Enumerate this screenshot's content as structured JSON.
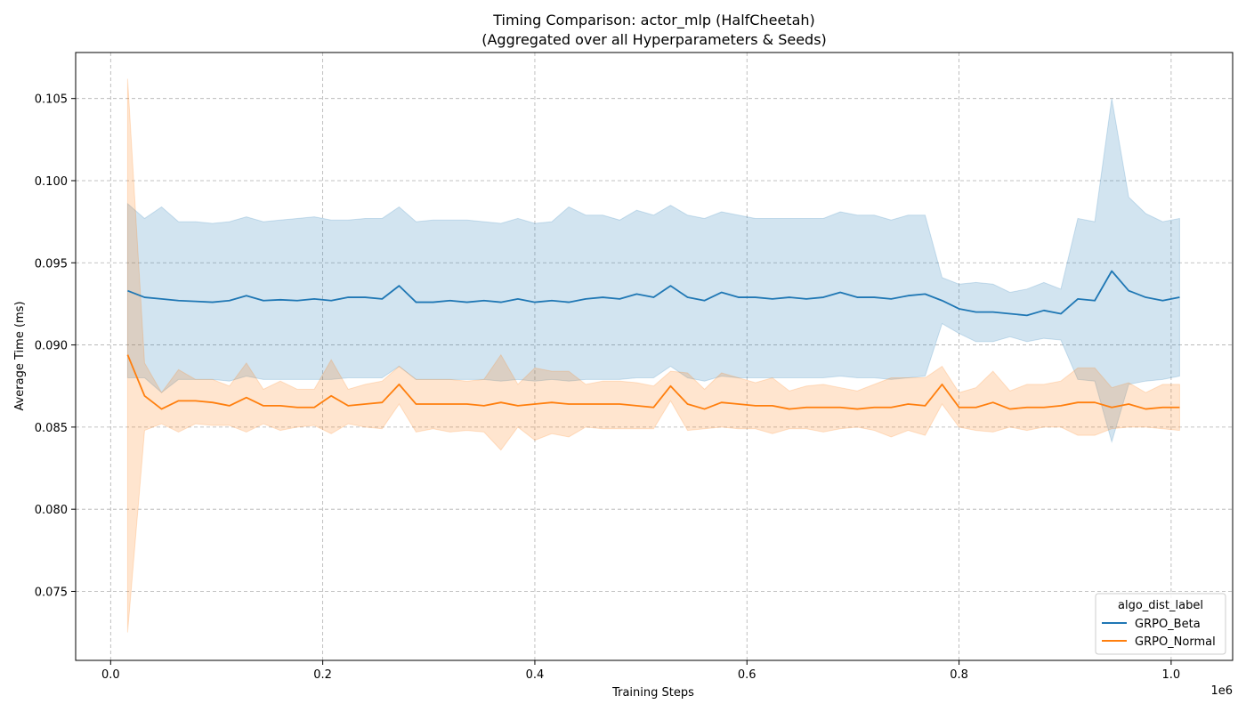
{
  "chart_data": {
    "type": "line",
    "title": "Timing Comparison: actor_mlp (HalfCheetah)",
    "subtitle": "(Aggregated over all Hyperparameters & Seeds)",
    "xlabel": "Training Steps",
    "ylabel": "Average Time (ms)",
    "x_multiplier_label": "1e6",
    "xlim": [
      -0.033,
      1.058
    ],
    "ylim": [
      0.0708,
      0.1078
    ],
    "x_ticks": [
      0.0,
      0.2,
      0.4,
      0.6,
      0.8,
      1.0
    ],
    "x_tick_labels": [
      "0.0",
      "0.2",
      "0.4",
      "0.6",
      "0.8",
      "1.0"
    ],
    "y_ticks": [
      0.075,
      0.08,
      0.085,
      0.09,
      0.095,
      0.1,
      0.105
    ],
    "y_tick_labels": [
      "0.075",
      "0.080",
      "0.085",
      "0.090",
      "0.095",
      "0.100",
      "0.105"
    ],
    "grid": true,
    "legend": {
      "title": "algo_dist_label",
      "placement": "lower-right"
    },
    "x": [
      0.016,
      0.032,
      0.048,
      0.064,
      0.08,
      0.096,
      0.112,
      0.128,
      0.144,
      0.16,
      0.176,
      0.192,
      0.208,
      0.224,
      0.24,
      0.256,
      0.272,
      0.288,
      0.304,
      0.32,
      0.336,
      0.352,
      0.368,
      0.384,
      0.4,
      0.416,
      0.432,
      0.448,
      0.464,
      0.48,
      0.496,
      0.512,
      0.528,
      0.544,
      0.56,
      0.576,
      0.592,
      0.608,
      0.624,
      0.64,
      0.656,
      0.672,
      0.688,
      0.704,
      0.72,
      0.736,
      0.752,
      0.768,
      0.784,
      0.8,
      0.816,
      0.832,
      0.848,
      0.864,
      0.88,
      0.896,
      0.912,
      0.928,
      0.944,
      0.96,
      0.976,
      0.992,
      1.008
    ],
    "series": [
      {
        "name": "GRPO_Beta",
        "color": "#1f77b4",
        "band_color": "#1f77b4",
        "mean": [
          0.0933,
          0.0929,
          0.0928,
          0.0927,
          0.09265,
          0.0926,
          0.0927,
          0.093,
          0.0927,
          0.09275,
          0.0927,
          0.0928,
          0.0927,
          0.0929,
          0.0929,
          0.0928,
          0.0936,
          0.0926,
          0.0926,
          0.0927,
          0.0926,
          0.0927,
          0.0926,
          0.0928,
          0.0926,
          0.0927,
          0.0926,
          0.0928,
          0.0929,
          0.0928,
          0.0931,
          0.0929,
          0.0936,
          0.0929,
          0.0927,
          0.0932,
          0.0929,
          0.0929,
          0.0928,
          0.0929,
          0.0928,
          0.0929,
          0.0932,
          0.0929,
          0.0929,
          0.0928,
          0.093,
          0.0931,
          0.0927,
          0.0922,
          0.092,
          0.092,
          0.0919,
          0.0918,
          0.0921,
          0.0919,
          0.0928,
          0.0927,
          0.0945,
          0.0933,
          0.0929,
          0.0927,
          0.0929
        ],
        "upper": [
          0.0986,
          0.0977,
          0.0984,
          0.0975,
          0.0975,
          0.0974,
          0.0975,
          0.0978,
          0.0975,
          0.0976,
          0.0977,
          0.0978,
          0.0976,
          0.0976,
          0.0977,
          0.0977,
          0.0984,
          0.0975,
          0.0976,
          0.0976,
          0.0976,
          0.0975,
          0.0974,
          0.0977,
          0.0974,
          0.0975,
          0.0984,
          0.0979,
          0.0979,
          0.0976,
          0.0982,
          0.0979,
          0.0985,
          0.0979,
          0.0977,
          0.0981,
          0.0979,
          0.0977,
          0.0977,
          0.0977,
          0.0977,
          0.0977,
          0.0981,
          0.0979,
          0.0979,
          0.0976,
          0.0979,
          0.0979,
          0.0941,
          0.0937,
          0.0938,
          0.0937,
          0.0932,
          0.0934,
          0.0938,
          0.0934,
          0.0977,
          0.0975,
          0.105,
          0.099,
          0.098,
          0.0975,
          0.0977
        ],
        "lower": [
          0.088,
          0.088,
          0.0871,
          0.0879,
          0.0879,
          0.0879,
          0.0878,
          0.0881,
          0.0879,
          0.0879,
          0.0879,
          0.0879,
          0.0879,
          0.088,
          0.088,
          0.088,
          0.0887,
          0.0879,
          0.0879,
          0.0879,
          0.0879,
          0.0879,
          0.0878,
          0.0879,
          0.0878,
          0.0879,
          0.0878,
          0.0879,
          0.0879,
          0.0879,
          0.088,
          0.088,
          0.0887,
          0.088,
          0.0878,
          0.0881,
          0.088,
          0.088,
          0.088,
          0.088,
          0.088,
          0.088,
          0.0881,
          0.088,
          0.088,
          0.0879,
          0.088,
          0.0881,
          0.0913,
          0.0907,
          0.0902,
          0.0902,
          0.0905,
          0.0902,
          0.0904,
          0.0903,
          0.0879,
          0.0878,
          0.0841,
          0.0876,
          0.0878,
          0.0879,
          0.0881
        ]
      },
      {
        "name": "GRPO_Normal",
        "color": "#ff7f0e",
        "band_color": "#ff7f0e",
        "mean": [
          0.0894,
          0.0869,
          0.0861,
          0.0866,
          0.0866,
          0.0865,
          0.0863,
          0.0868,
          0.0863,
          0.0863,
          0.0862,
          0.0862,
          0.0869,
          0.0863,
          0.0864,
          0.0865,
          0.0876,
          0.0864,
          0.0864,
          0.0864,
          0.0864,
          0.0863,
          0.0865,
          0.0863,
          0.0864,
          0.0865,
          0.0864,
          0.0864,
          0.0864,
          0.0864,
          0.0863,
          0.0862,
          0.0875,
          0.0864,
          0.0861,
          0.0865,
          0.0864,
          0.0863,
          0.0863,
          0.0861,
          0.0862,
          0.0862,
          0.0862,
          0.0861,
          0.0862,
          0.0862,
          0.0864,
          0.0863,
          0.0876,
          0.0862,
          0.0862,
          0.0865,
          0.0861,
          0.0862,
          0.0862,
          0.0863,
          0.0865,
          0.0865,
          0.0862,
          0.0864,
          0.0861,
          0.0862,
          0.0862
        ],
        "upper": [
          0.1062,
          0.0889,
          0.0871,
          0.0885,
          0.0879,
          0.0879,
          0.0875,
          0.0889,
          0.0873,
          0.0878,
          0.0873,
          0.0873,
          0.0891,
          0.0873,
          0.0876,
          0.0878,
          0.0887,
          0.0879,
          0.0879,
          0.0879,
          0.0878,
          0.0879,
          0.0894,
          0.0876,
          0.0886,
          0.0884,
          0.0884,
          0.0876,
          0.0878,
          0.0878,
          0.0877,
          0.0875,
          0.0884,
          0.0883,
          0.0873,
          0.0883,
          0.088,
          0.0877,
          0.088,
          0.0872,
          0.0875,
          0.0876,
          0.0874,
          0.0872,
          0.0876,
          0.088,
          0.088,
          0.088,
          0.0887,
          0.0871,
          0.0874,
          0.0884,
          0.0872,
          0.0876,
          0.0876,
          0.0878,
          0.0886,
          0.0886,
          0.0874,
          0.0877,
          0.0871,
          0.0876,
          0.0876
        ],
        "lower": [
          0.0725,
          0.0848,
          0.0852,
          0.0847,
          0.0852,
          0.0851,
          0.0851,
          0.0847,
          0.0852,
          0.0848,
          0.085,
          0.0851,
          0.0846,
          0.0852,
          0.085,
          0.0849,
          0.0864,
          0.0847,
          0.0849,
          0.0847,
          0.0848,
          0.0847,
          0.0836,
          0.085,
          0.0842,
          0.0846,
          0.0844,
          0.085,
          0.0849,
          0.0849,
          0.0849,
          0.0849,
          0.0866,
          0.0848,
          0.0849,
          0.085,
          0.0849,
          0.0849,
          0.0846,
          0.0849,
          0.0849,
          0.0847,
          0.0849,
          0.085,
          0.0848,
          0.0844,
          0.0848,
          0.0845,
          0.0864,
          0.085,
          0.0848,
          0.0847,
          0.085,
          0.0848,
          0.085,
          0.085,
          0.0845,
          0.0845,
          0.0849,
          0.085,
          0.085,
          0.0849,
          0.0848
        ]
      }
    ]
  }
}
